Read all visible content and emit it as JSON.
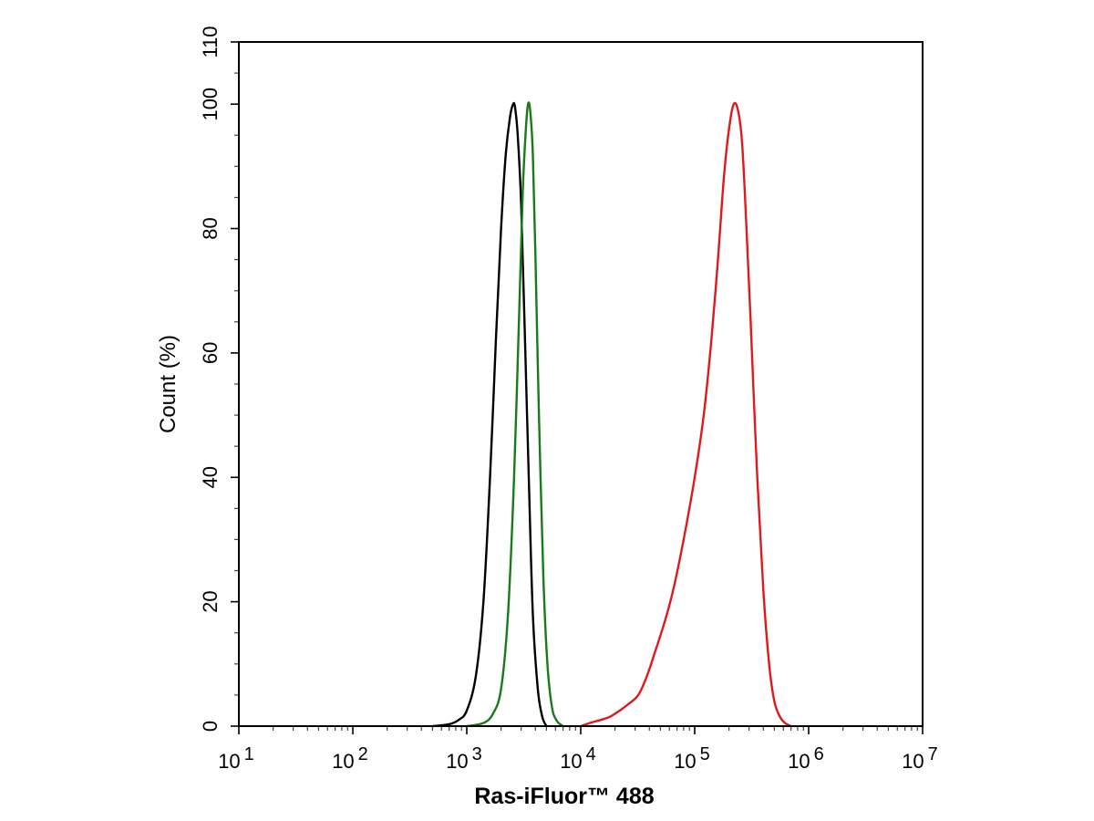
{
  "chart_data": {
    "type": "line",
    "title": "",
    "xlabel": "Ras-iFluor™ 488",
    "ylabel": "Count  (%)",
    "x_scale": "log",
    "xlim": [
      10,
      10000000
    ],
    "ylim": [
      0,
      110
    ],
    "grid": false,
    "x_ticks": [
      {
        "value": 10,
        "base": "10",
        "exp": "1"
      },
      {
        "value": 100,
        "base": "10",
        "exp": "2"
      },
      {
        "value": 1000,
        "base": "10",
        "exp": "3"
      },
      {
        "value": 10000,
        "base": "10",
        "exp": "4"
      },
      {
        "value": 100000,
        "base": "10",
        "exp": "5"
      },
      {
        "value": 1000000,
        "base": "10",
        "exp": "6"
      },
      {
        "value": 10000000,
        "base": "10",
        "exp": "7"
      }
    ],
    "y_ticks": [
      0,
      20,
      40,
      60,
      80,
      100,
      110
    ],
    "series": [
      {
        "color": "#000000",
        "x": [
          500,
          700,
          850,
          1000,
          1200,
          1400,
          1600,
          1800,
          2000,
          2200,
          2400,
          2550,
          2650,
          2800,
          3000,
          3200,
          3500,
          3800,
          4200,
          4600,
          5000
        ],
        "y": [
          0,
          0.3,
          1,
          2.5,
          8,
          20,
          40,
          62,
          80,
          92,
          98,
          100,
          99.5,
          95,
          84,
          66,
          40,
          18,
          6,
          1.5,
          0
        ]
      },
      {
        "color": "#1a7a1a",
        "x": [
          1000,
          1400,
          1700,
          2000,
          2300,
          2600,
          2900,
          3100,
          3300,
          3450,
          3600,
          3800,
          4000,
          4300,
          4700,
          5100,
          5600,
          6200,
          7000
        ],
        "y": [
          0,
          0.5,
          2,
          6,
          18,
          40,
          68,
          86,
          96,
          100,
          99,
          92,
          76,
          50,
          24,
          10,
          3,
          0.8,
          0
        ]
      },
      {
        "color": "#e0191c",
        "x": [
          10000,
          12000,
          15000,
          18000,
          22000,
          26000,
          32000,
          38000,
          45000,
          55000,
          65000,
          80000,
          100000,
          120000,
          140000,
          160000,
          180000,
          200000,
          220000,
          240000,
          260000,
          280000,
          310000,
          350000,
          400000,
          450000,
          500000,
          560000,
          620000,
          700000
        ],
        "y": [
          0,
          0.5,
          1,
          1.5,
          2.5,
          3.5,
          5,
          8,
          12,
          17,
          22,
          30,
          40,
          50,
          62,
          75,
          88,
          96,
          100,
          99,
          94,
          83,
          65,
          42,
          22,
          10,
          4,
          1.5,
          0.5,
          0
        ]
      }
    ]
  }
}
